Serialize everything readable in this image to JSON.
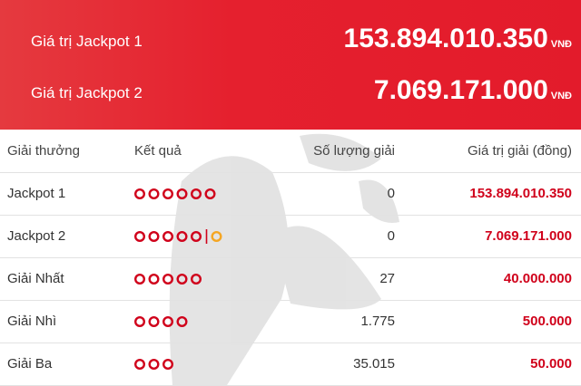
{
  "header": {
    "rows": [
      {
        "label": "Giá trị Jackpot 1",
        "value": "153.894.010.350",
        "unit": "VNĐ"
      },
      {
        "label": "Giá trị Jackpot 2",
        "value": "7.069.171.000",
        "unit": "VNĐ"
      }
    ]
  },
  "table": {
    "columns": [
      "Giải thưởng",
      "Kết quả",
      "Số lượng giải",
      "Giá trị giải (đồng)"
    ],
    "rows": [
      {
        "name": "Jackpot 1",
        "count": "0",
        "prize": "153.894.010.350"
      },
      {
        "name": "Jackpot 2",
        "count": "0",
        "prize": "7.069.171.000"
      },
      {
        "name": "Giải Nhất",
        "count": "27",
        "prize": "40.000.000"
      },
      {
        "name": "Giải Nhì",
        "count": "1.775",
        "prize": "500.000"
      },
      {
        "name": "Giải Ba",
        "count": "35.015",
        "prize": "50.000"
      }
    ]
  }
}
